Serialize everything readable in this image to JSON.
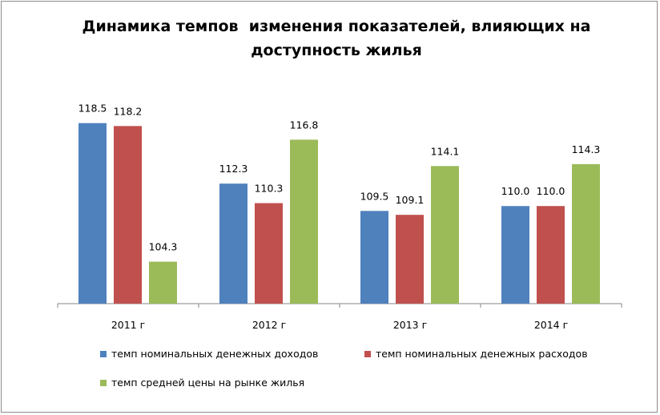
{
  "chart_data": {
    "type": "bar",
    "title": "Динамика темпов  изменения показателей, влияющих на доступность жилья",
    "categories": [
      "2011 г",
      "2012 г",
      "2013 г",
      "2014 г"
    ],
    "series": [
      {
        "name": "темп номинальных денежных доходов",
        "color": "#4F81BD",
        "values": [
          118.5,
          112.3,
          109.5,
          110.0
        ],
        "labels": [
          "118.5",
          "112.3",
          "109.5",
          "110.0"
        ]
      },
      {
        "name": "темп номинальных денежных расходов",
        "color": "#C0504D",
        "values": [
          118.2,
          110.3,
          109.1,
          110.0
        ],
        "labels": [
          "118.2",
          "110.3",
          "109.1",
          "110.0"
        ]
      },
      {
        "name": "темп средней цены на рынке жилья",
        "color": "#9BBB59",
        "values": [
          104.3,
          116.8,
          114.1,
          114.3
        ],
        "labels": [
          "104.3",
          "116.8",
          "114.1",
          "114.3"
        ]
      }
    ],
    "ylim": [
      100,
      120
    ],
    "grid": false,
    "legend_position": "bottom"
  }
}
